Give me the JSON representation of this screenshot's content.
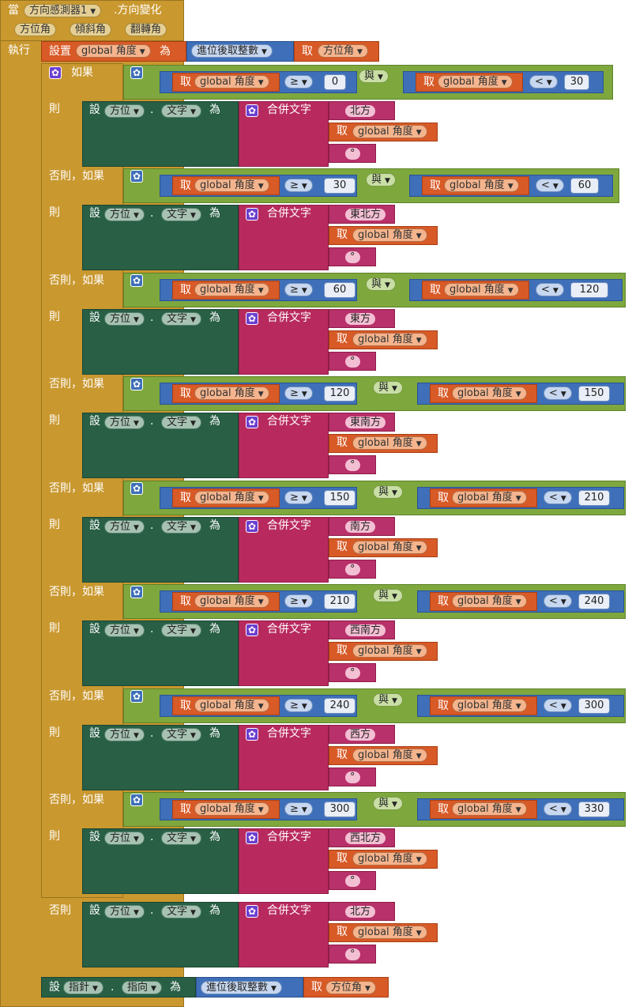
{
  "event": {
    "when": "當",
    "component": "方向感測器1",
    "event_name": ".方向變化",
    "params": [
      "方位角",
      "傾斜角",
      "翻轉角"
    ],
    "do": "執行"
  },
  "set_var": {
    "set": "設置",
    "var": "global 角度",
    "to": "為",
    "round": "進位後取整數",
    "get": "取",
    "param": "方位角"
  },
  "if_labels": {
    "if": "如果",
    "then": "則",
    "elseif": "否則，如果",
    "else": "否則"
  },
  "get_label": "取",
  "var_name": "global 角度",
  "and_label": "與",
  "ops": {
    "ge": "≥",
    "lt": "<"
  },
  "setter": {
    "set": "設",
    "component": "方位",
    "prop": "文字",
    "to": "為",
    "join": "合併文字",
    "degree": "°"
  },
  "branches": [
    {
      "lo": "0",
      "hi": "30",
      "dir": "北方"
    },
    {
      "lo": "30",
      "hi": "60",
      "dir": "東北方"
    },
    {
      "lo": "60",
      "hi": "120",
      "dir": "東方"
    },
    {
      "lo": "120",
      "hi": "150",
      "dir": "東南方"
    },
    {
      "lo": "150",
      "hi": "210",
      "dir": "南方"
    },
    {
      "lo": "210",
      "hi": "240",
      "dir": "西南方"
    },
    {
      "lo": "240",
      "hi": "300",
      "dir": "西方"
    },
    {
      "lo": "300",
      "hi": "330",
      "dir": "西北方"
    }
  ],
  "else_dir": "北方",
  "final": {
    "set": "設",
    "component": "指針",
    "prop": "指向",
    "to": "為",
    "round": "進位後取整數",
    "get": "取",
    "param": "方位角"
  },
  "colors": {
    "event": "#c9982f",
    "compset": "#285f45",
    "text": "#b82a5e",
    "var": "#d85a27",
    "math": "#3e6fb8",
    "logic": "#7ea83e"
  }
}
